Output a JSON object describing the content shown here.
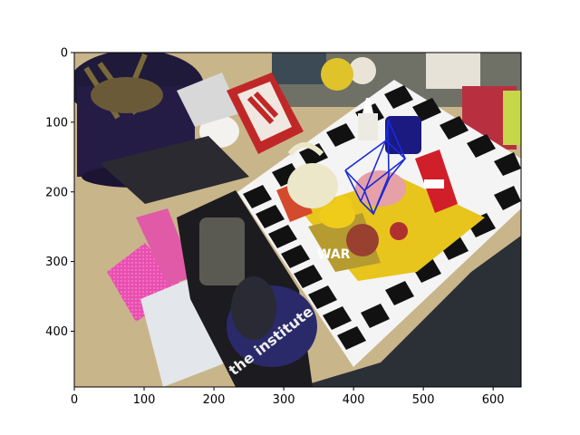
{
  "figure": {
    "image_description_hidden": "",
    "x_ticks": [
      "0",
      "100",
      "200",
      "300",
      "400",
      "500",
      "600"
    ],
    "y_ticks": [
      "0",
      "100",
      "200",
      "300",
      "400"
    ],
    "x_range": [
      0,
      640
    ],
    "y_range": [
      480,
      0
    ],
    "box_color": "#1a2ad8",
    "book_text": "the institute",
    "mag_text": "WAR"
  }
}
